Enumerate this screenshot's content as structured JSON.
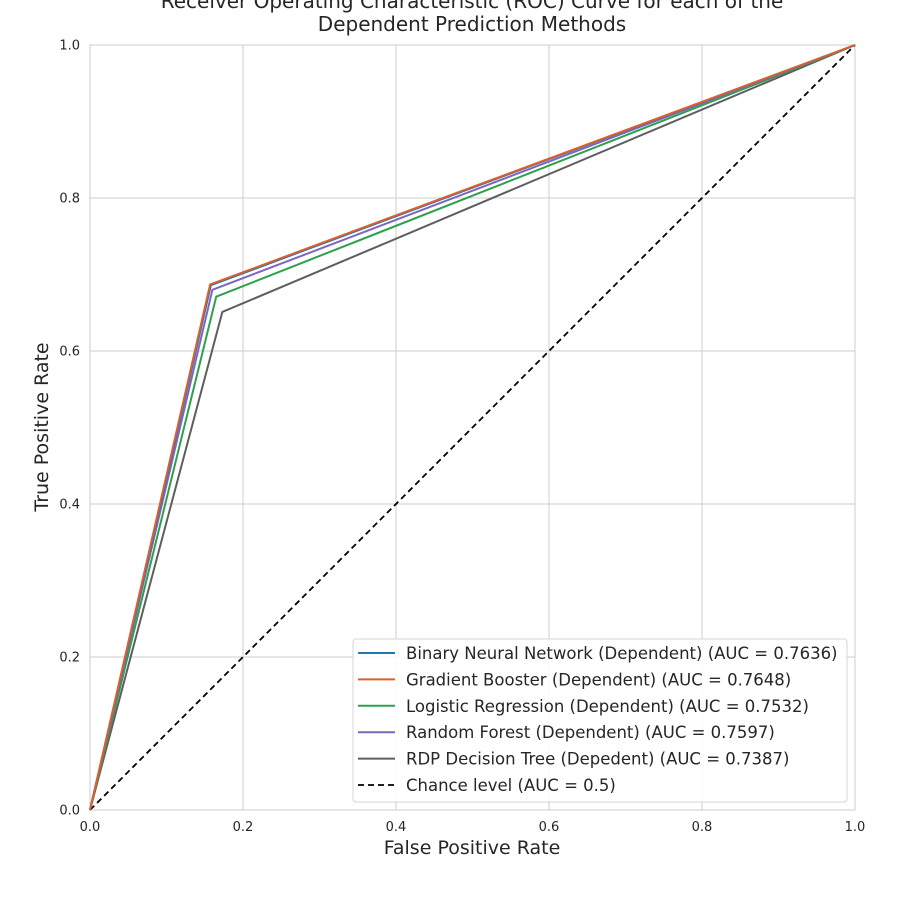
{
  "chart_data": {
    "type": "line",
    "title": [
      "Receiver Operating Characteristic (ROC) Curve for each of the",
      "Dependent Prediction Methods"
    ],
    "xlabel": "False Positive Rate",
    "ylabel": "True Positive Rate",
    "xlim": [
      0.0,
      1.0
    ],
    "ylim": [
      0.0,
      1.0
    ],
    "xticks": [
      "0.0",
      "0.2",
      "0.4",
      "0.6",
      "0.8",
      "1.0"
    ],
    "yticks": [
      "0.0",
      "0.2",
      "0.4",
      "0.6",
      "0.8",
      "1.0"
    ],
    "grid": true,
    "legend_position": "lower-right",
    "series": [
      {
        "name": "Binary Neural Network (Dependent) (AUC = 0.7636)",
        "color": "#1f77b4",
        "dashed": false,
        "x": [
          0.0,
          0.158,
          1.0
        ],
        "y": [
          0.0,
          0.686,
          1.0
        ]
      },
      {
        "name": "Gradient Booster (Dependent) (AUC = 0.7648)",
        "color": "#dd5f2a",
        "dashed": false,
        "x": [
          0.0,
          0.157,
          1.0
        ],
        "y": [
          0.0,
          0.687,
          1.0
        ]
      },
      {
        "name": "Logistic Regression (Dependent) (AUC = 0.7532)",
        "color": "#2ca04c",
        "dashed": false,
        "x": [
          0.0,
          0.165,
          1.0
        ],
        "y": [
          0.0,
          0.671,
          1.0
        ]
      },
      {
        "name": "Random Forest (Dependent) (AUC = 0.7597)",
        "color": "#7b67be",
        "dashed": false,
        "x": [
          0.0,
          0.16,
          1.0
        ],
        "y": [
          0.0,
          0.68,
          1.0
        ]
      },
      {
        "name": "RDP Decision Tree (Depedent) (AUC = 0.7387)",
        "color": "#5e5e5e",
        "dashed": false,
        "x": [
          0.0,
          0.173,
          1.0
        ],
        "y": [
          0.0,
          0.651,
          1.0
        ]
      },
      {
        "name": "Chance level (AUC = 0.5)",
        "color": "#000000",
        "dashed": true,
        "x": [
          0.0,
          1.0
        ],
        "y": [
          0.0,
          1.0
        ]
      }
    ]
  }
}
